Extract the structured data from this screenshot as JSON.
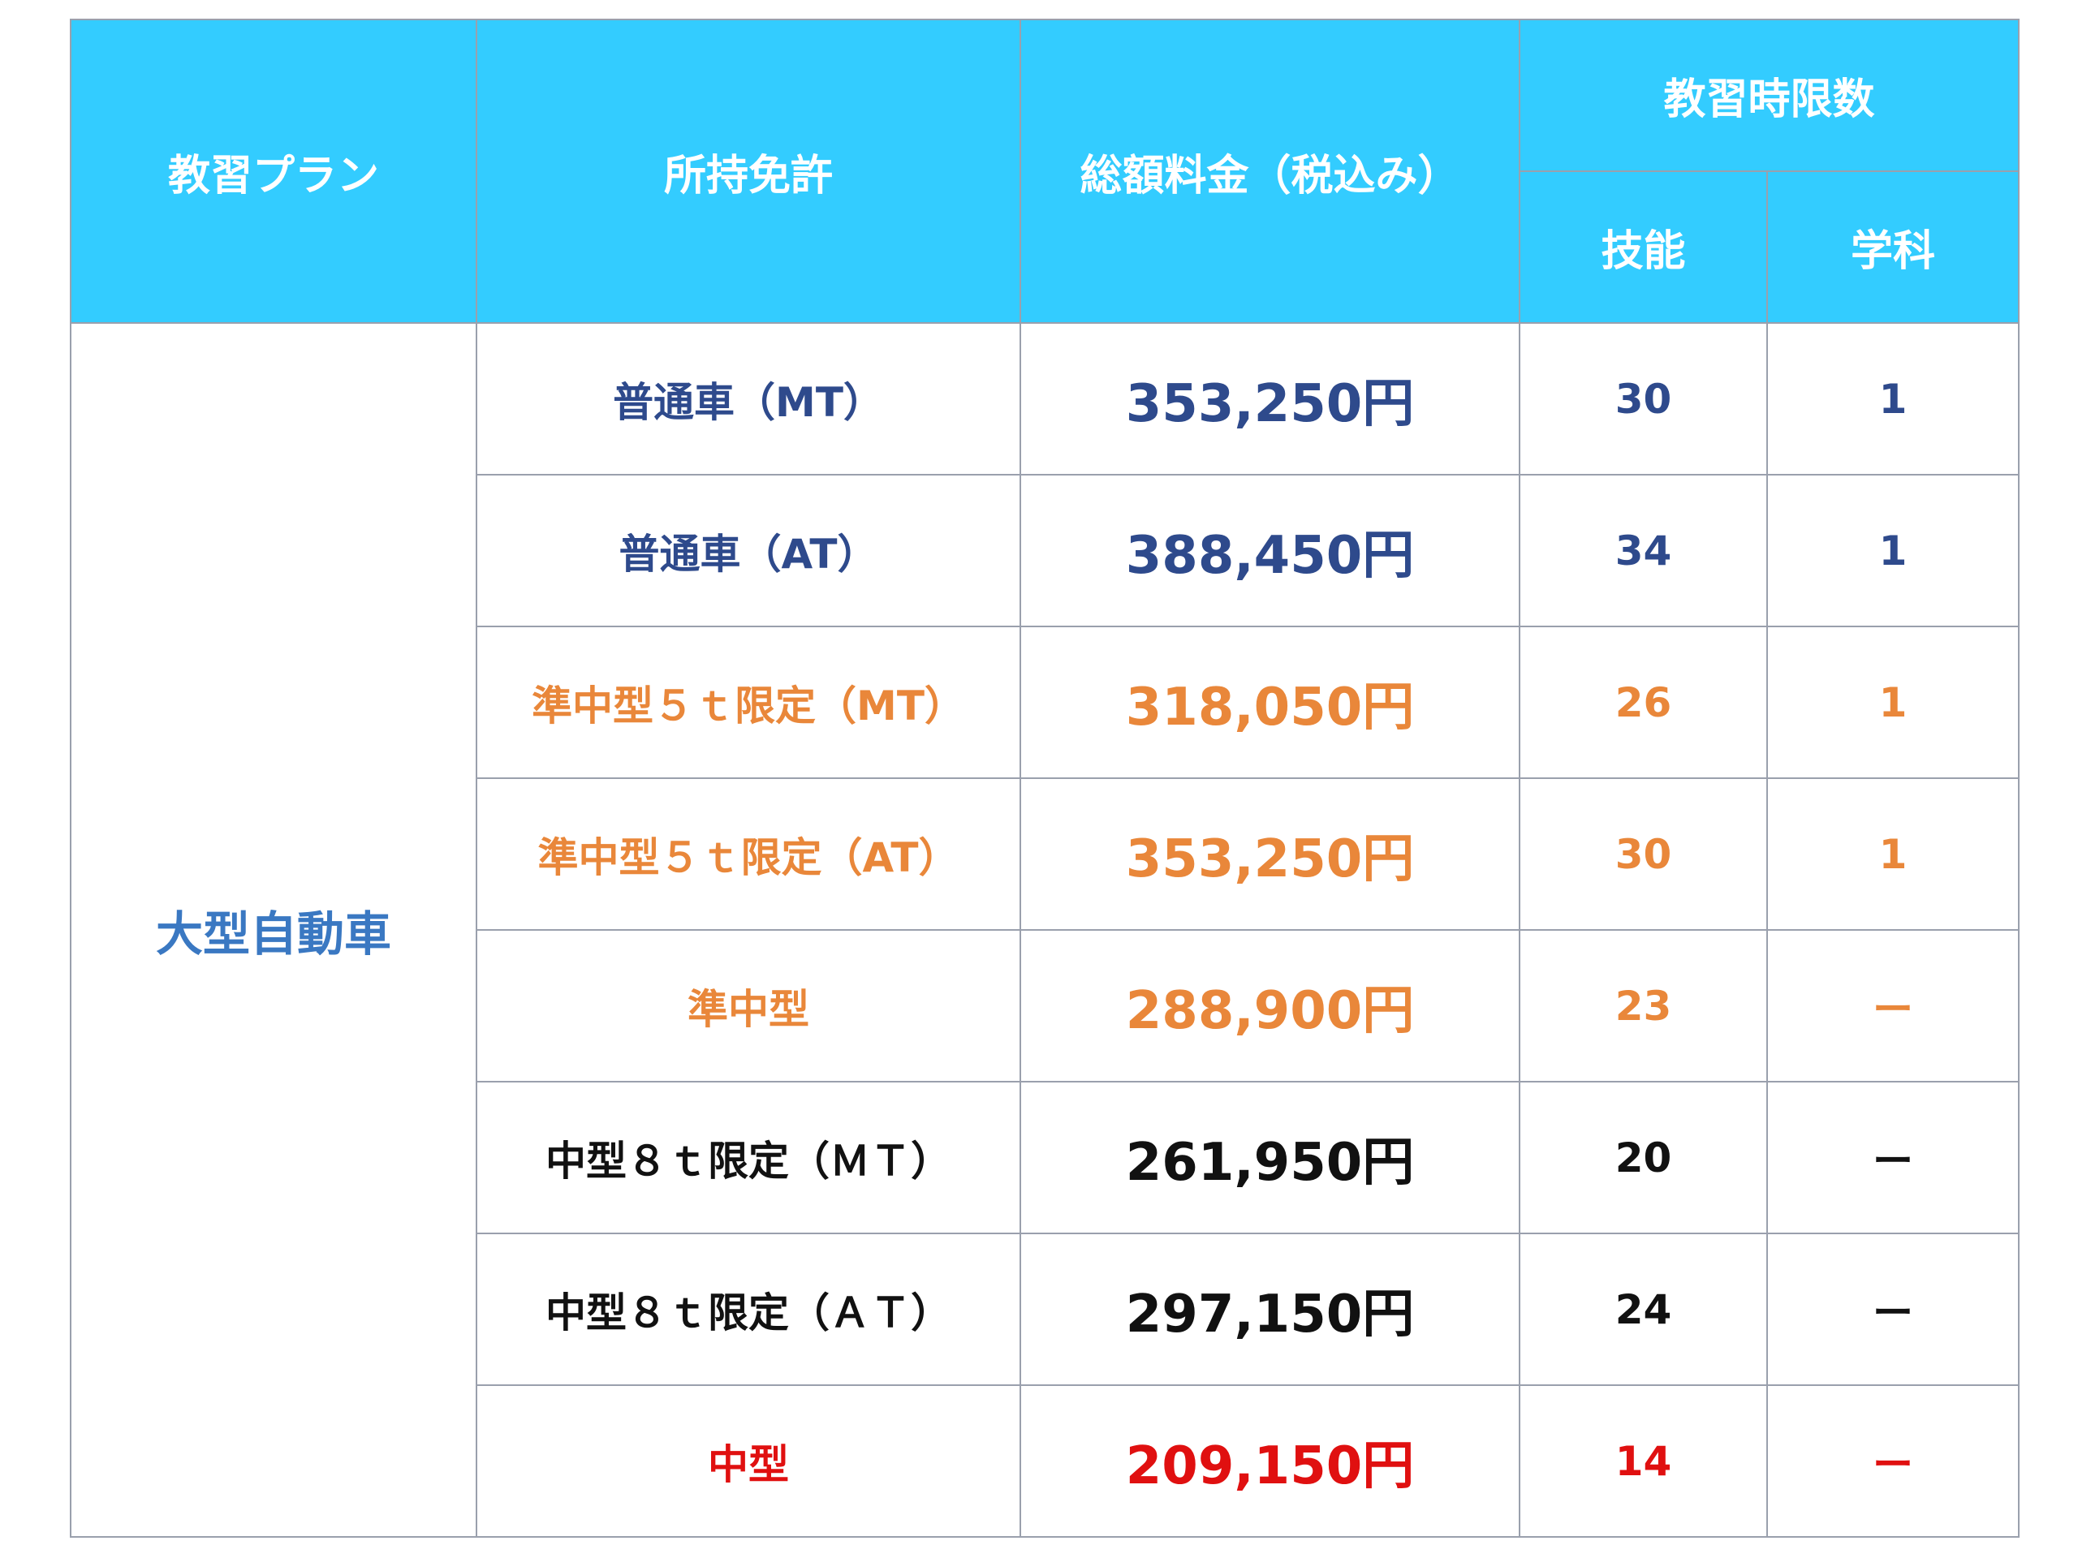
{
  "header": {
    "plan": "教習プラン",
    "license": "所持免許",
    "total_fee": "総額料金（税込み）",
    "hours": "教習時限数",
    "skill": "技能",
    "academic": "学科"
  },
  "plan_name": "大型自動車",
  "colors": {
    "header_bg": "#33ccff",
    "plan": "#3a78c2",
    "navy": "#2e4a8c",
    "orange": "#e9873a",
    "black": "#111111",
    "red": "#e01010"
  },
  "rows": [
    {
      "license": "普通車（MT）",
      "price": "353,250円",
      "skill": "30",
      "academic": "1",
      "color": "navy"
    },
    {
      "license": "普通車（AT）",
      "price": "388,450円",
      "skill": "34",
      "academic": "1",
      "color": "navy"
    },
    {
      "license": "準中型５ｔ限定（MT）",
      "price": "318,050円",
      "skill": "26",
      "academic": "1",
      "color": "orange"
    },
    {
      "license": "準中型５ｔ限定（AT）",
      "price": "353,250円",
      "skill": "30",
      "academic": "1",
      "color": "orange"
    },
    {
      "license": "準中型",
      "price": "288,900円",
      "skill": "23",
      "academic": "ー",
      "color": "orange"
    },
    {
      "license": "中型８ｔ限定（ＭＴ）",
      "price": "261,950円",
      "skill": "20",
      "academic": "ー",
      "color": "black"
    },
    {
      "license": "中型８ｔ限定（ＡＴ）",
      "price": "297,150円",
      "skill": "24",
      "academic": "ー",
      "color": "black"
    },
    {
      "license": "中型",
      "price": "209,150円",
      "skill": "14",
      "academic": "ー",
      "color": "red"
    }
  ]
}
